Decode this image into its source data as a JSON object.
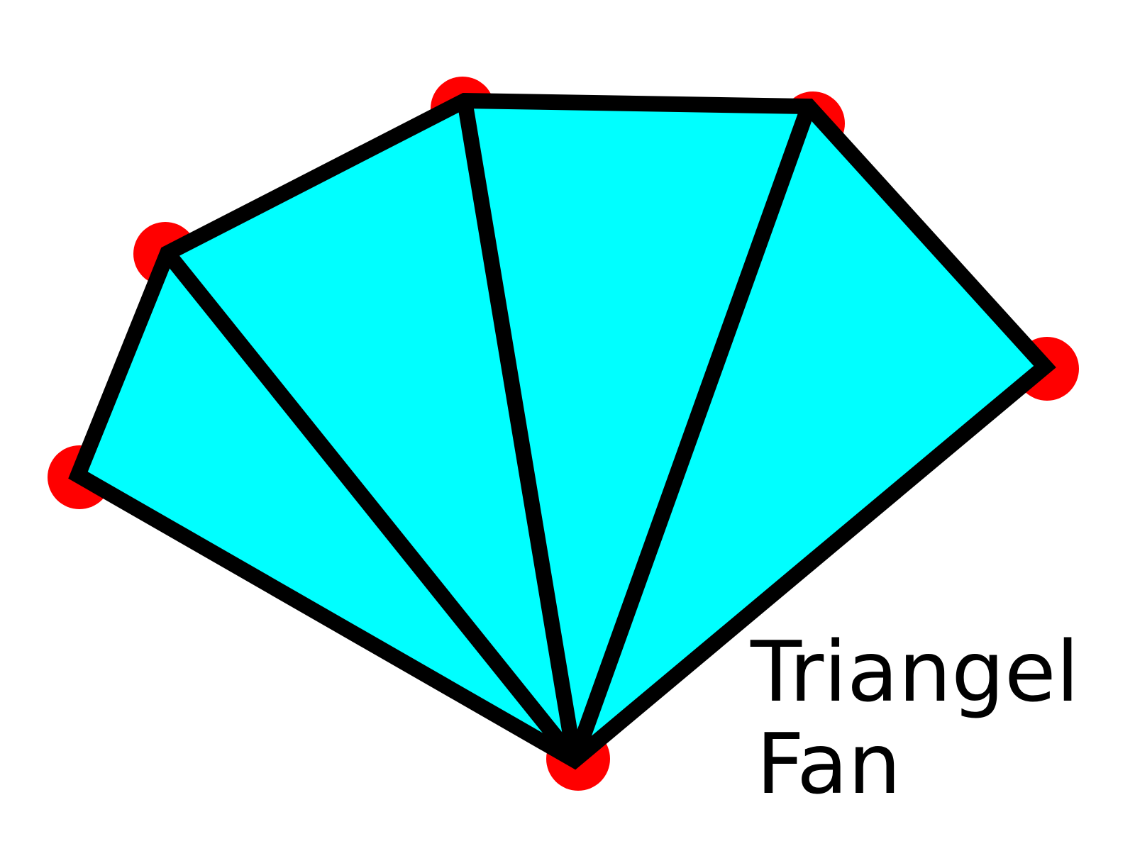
{
  "diagram": {
    "label_lines": [
      "Triangel",
      "Fan"
    ],
    "colors": {
      "fill": "#00ffff",
      "edge": "#000000",
      "vertex": "#ff0000",
      "text": "#000000"
    },
    "vertex_count": 6,
    "triangle_count": 4
  }
}
